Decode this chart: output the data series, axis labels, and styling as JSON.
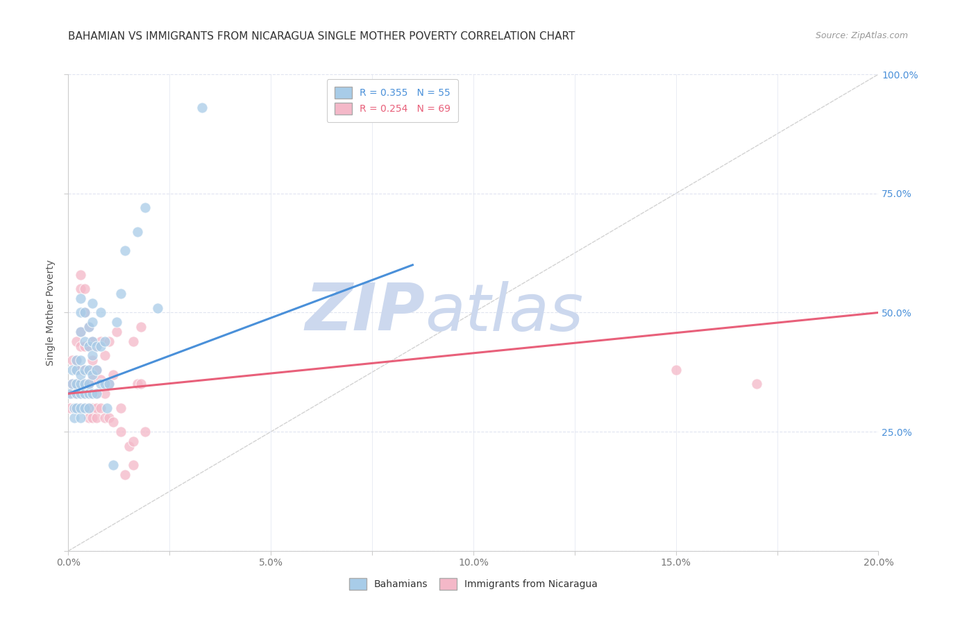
{
  "title": "BAHAMIAN VS IMMIGRANTS FROM NICARAGUA SINGLE MOTHER POVERTY CORRELATION CHART",
  "source": "Source: ZipAtlas.com",
  "ylabel": "Single Mother Poverty",
  "legend_blue_R": "0.355",
  "legend_blue_N": "55",
  "legend_pink_R": "0.254",
  "legend_pink_N": "69",
  "blue_color": "#a8cce8",
  "pink_color": "#f4b8c8",
  "blue_line_color": "#4a90d9",
  "pink_line_color": "#e8607a",
  "diag_line_color": "#c8c8c8",
  "background_color": "#ffffff",
  "grid_color": "#e0e4f0",
  "blue_trend_x": [
    0.0,
    0.085
  ],
  "blue_trend_y": [
    0.33,
    0.6
  ],
  "pink_trend_x": [
    0.0,
    0.2
  ],
  "pink_trend_y": [
    0.33,
    0.5
  ],
  "blue_points_x": [
    0.0005,
    0.001,
    0.001,
    0.0015,
    0.0015,
    0.002,
    0.002,
    0.002,
    0.002,
    0.002,
    0.003,
    0.003,
    0.003,
    0.003,
    0.003,
    0.003,
    0.003,
    0.003,
    0.003,
    0.004,
    0.004,
    0.004,
    0.004,
    0.004,
    0.004,
    0.005,
    0.005,
    0.005,
    0.005,
    0.005,
    0.005,
    0.006,
    0.006,
    0.006,
    0.006,
    0.006,
    0.006,
    0.007,
    0.007,
    0.007,
    0.008,
    0.008,
    0.008,
    0.009,
    0.009,
    0.0095,
    0.01,
    0.011,
    0.012,
    0.013,
    0.014,
    0.017,
    0.019,
    0.022,
    0.033
  ],
  "blue_points_y": [
    0.33,
    0.35,
    0.38,
    0.28,
    0.3,
    0.3,
    0.33,
    0.35,
    0.38,
    0.4,
    0.28,
    0.3,
    0.33,
    0.35,
    0.37,
    0.4,
    0.46,
    0.5,
    0.53,
    0.3,
    0.33,
    0.35,
    0.38,
    0.44,
    0.5,
    0.3,
    0.33,
    0.35,
    0.38,
    0.43,
    0.47,
    0.33,
    0.37,
    0.41,
    0.44,
    0.48,
    0.52,
    0.33,
    0.38,
    0.43,
    0.35,
    0.43,
    0.5,
    0.35,
    0.44,
    0.3,
    0.35,
    0.18,
    0.48,
    0.54,
    0.63,
    0.67,
    0.72,
    0.51,
    0.93
  ],
  "pink_points_x": [
    0.0005,
    0.001,
    0.001,
    0.001,
    0.0015,
    0.002,
    0.002,
    0.002,
    0.002,
    0.002,
    0.002,
    0.003,
    0.003,
    0.003,
    0.003,
    0.003,
    0.003,
    0.003,
    0.003,
    0.004,
    0.004,
    0.004,
    0.004,
    0.004,
    0.004,
    0.004,
    0.005,
    0.005,
    0.005,
    0.005,
    0.005,
    0.005,
    0.005,
    0.006,
    0.006,
    0.006,
    0.006,
    0.006,
    0.006,
    0.007,
    0.007,
    0.007,
    0.007,
    0.007,
    0.008,
    0.008,
    0.008,
    0.009,
    0.009,
    0.009,
    0.01,
    0.01,
    0.01,
    0.011,
    0.011,
    0.012,
    0.013,
    0.013,
    0.014,
    0.015,
    0.016,
    0.016,
    0.017,
    0.018,
    0.019,
    0.016,
    0.018,
    0.15,
    0.17
  ],
  "pink_points_y": [
    0.3,
    0.33,
    0.35,
    0.4,
    0.3,
    0.3,
    0.33,
    0.35,
    0.38,
    0.4,
    0.44,
    0.3,
    0.33,
    0.35,
    0.38,
    0.43,
    0.46,
    0.55,
    0.58,
    0.3,
    0.33,
    0.35,
    0.38,
    0.43,
    0.5,
    0.55,
    0.28,
    0.3,
    0.33,
    0.35,
    0.38,
    0.43,
    0.47,
    0.28,
    0.3,
    0.33,
    0.36,
    0.4,
    0.44,
    0.28,
    0.3,
    0.33,
    0.38,
    0.43,
    0.3,
    0.36,
    0.44,
    0.28,
    0.33,
    0.41,
    0.28,
    0.35,
    0.44,
    0.27,
    0.37,
    0.46,
    0.25,
    0.3,
    0.16,
    0.22,
    0.23,
    0.44,
    0.35,
    0.47,
    0.25,
    0.18,
    0.35,
    0.38,
    0.35
  ],
  "xlim": [
    0.0,
    0.2
  ],
  "ylim": [
    0.0,
    1.0
  ],
  "xticks": [
    0.0,
    0.025,
    0.05,
    0.075,
    0.1,
    0.125,
    0.15,
    0.175,
    0.2
  ],
  "xtick_major": [
    0.0,
    0.05,
    0.1,
    0.15,
    0.2
  ],
  "yticks": [
    0.0,
    0.25,
    0.5,
    0.75,
    1.0
  ],
  "watermark_zip": "ZIP",
  "watermark_atlas": "atlas",
  "watermark_color": "#ccd8ee",
  "title_fontsize": 11,
  "source_fontsize": 9,
  "axis_fontsize": 10,
  "legend_fontsize": 10,
  "tick_label_color_x": "#777777",
  "tick_label_color_y": "#4a90d9"
}
